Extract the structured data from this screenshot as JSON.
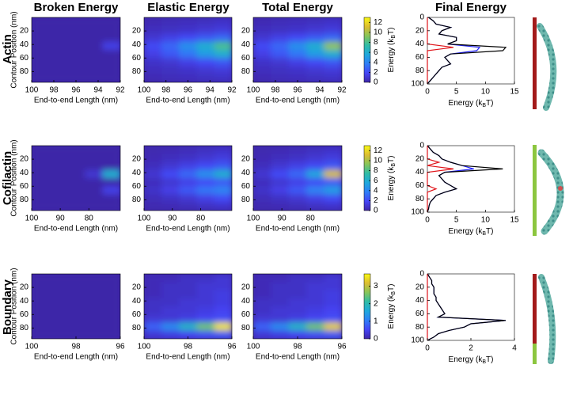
{
  "column_titles": [
    "Broken Energy",
    "Elastic Energy",
    "Total Energy",
    "Final Energy"
  ],
  "row_labels": [
    "Actin",
    "Cofilactin",
    "Boundary"
  ],
  "colormap": [
    "#3e26a8",
    "#4545f5",
    "#2f7ef6",
    "#1fa8dc",
    "#30bca6",
    "#86c55a",
    "#dcbd32",
    "#f9f915"
  ],
  "chart_data": [
    {
      "type": "heatmap",
      "ylabel": "Contour Position (nm)",
      "xlabel": "End-to-end Length (nm)",
      "xlim": [
        100,
        92
      ],
      "xticks": [
        100,
        98,
        96,
        94,
        92
      ],
      "ylim": [
        0,
        96
      ],
      "yticks": [
        20,
        40,
        60,
        80
      ],
      "z": [
        [
          0,
          0,
          0,
          0,
          0
        ],
        [
          0,
          0,
          0,
          0,
          0
        ],
        [
          0,
          0,
          0,
          0,
          0
        ],
        [
          0,
          0,
          0,
          0,
          1.5
        ],
        [
          0,
          0,
          0,
          0,
          0
        ],
        [
          0,
          0,
          0,
          0,
          0
        ],
        [
          0,
          0,
          0,
          0,
          0
        ],
        [
          0,
          0,
          0,
          0,
          0
        ]
      ]
    },
    {
      "type": "heatmap",
      "xlabel": "End-to-end Length (nm)",
      "xlim": [
        100,
        92
      ],
      "xticks": [
        100,
        98,
        96,
        94,
        92
      ],
      "ylim": [
        0,
        96
      ],
      "yticks": [
        20,
        40,
        60,
        80
      ],
      "z": [
        [
          0.3,
          0.4,
          0.5,
          0.6,
          0.8
        ],
        [
          0.5,
          0.6,
          0.8,
          1,
          1.2
        ],
        [
          1,
          1.5,
          2,
          2.5,
          3
        ],
        [
          2,
          3,
          4.5,
          6,
          8
        ],
        [
          1.5,
          2.5,
          3.5,
          5,
          6
        ],
        [
          0.8,
          1,
          1.5,
          2,
          2.5
        ],
        [
          0.5,
          0.6,
          0.8,
          1,
          1.2
        ],
        [
          0.3,
          0.4,
          0.5,
          0.6,
          0.7
        ]
      ]
    },
    {
      "type": "heatmap",
      "xlabel": "End-to-end Length (nm)",
      "xlim": [
        100,
        92
      ],
      "xticks": [
        100,
        98,
        96,
        94,
        92
      ],
      "ylim": [
        0,
        96
      ],
      "yticks": [
        20,
        40,
        60,
        80
      ],
      "z": [
        [
          0.3,
          0.4,
          0.5,
          0.6,
          0.8
        ],
        [
          0.5,
          0.6,
          0.8,
          1,
          1.2
        ],
        [
          1,
          1.5,
          2,
          2.5,
          3
        ],
        [
          2,
          3,
          4.5,
          6,
          9.5
        ],
        [
          1.5,
          2.5,
          3.5,
          5,
          6
        ],
        [
          0.8,
          1,
          1.5,
          2,
          2.5
        ],
        [
          0.5,
          0.6,
          0.8,
          1,
          1.2
        ],
        [
          0.3,
          0.4,
          0.5,
          0.6,
          0.7
        ]
      ]
    },
    {
      "type": "colorbar",
      "label": [
        "Energy (k",
        "B",
        "T)"
      ],
      "lim": [
        0,
        13
      ],
      "ticks": [
        0,
        2,
        4,
        6,
        8,
        10,
        12
      ]
    },
    {
      "type": "line",
      "xlabel": [
        "Energy (k",
        "B",
        "T)"
      ],
      "xlim": [
        0,
        15
      ],
      "xticks": [
        0,
        5,
        10,
        15
      ],
      "ylim": [
        0,
        100
      ],
      "yticks": [
        0,
        20,
        40,
        60,
        80,
        100
      ],
      "positions": [
        0,
        5,
        10,
        15,
        20,
        25,
        30,
        35,
        40,
        45,
        50,
        55,
        60,
        65,
        70,
        75,
        80,
        85,
        90,
        95,
        100
      ],
      "series": [
        {
          "color": "#1f1fff",
          "values": [
            0.2,
            1,
            1.5,
            4,
            2.5,
            2,
            5,
            5,
            3.5,
            9,
            8.5,
            4,
            3,
            3.5,
            4,
            2.5,
            2,
            1.5,
            1,
            0.5,
            0
          ]
        },
        {
          "color": "#000000",
          "values": [
            0.2,
            1,
            1.5,
            4,
            2.5,
            2,
            5,
            5,
            3.5,
            13.5,
            13,
            4,
            3,
            3.5,
            4,
            2.5,
            2,
            1.5,
            1,
            0.5,
            0
          ]
        },
        {
          "color": "#e0141a",
          "values": [
            0,
            0,
            0,
            0,
            0,
            0,
            0,
            0,
            0,
            4.5,
            0,
            0,
            0,
            0,
            0,
            0,
            0,
            0,
            0,
            0,
            0
          ]
        }
      ]
    },
    {
      "type": "heatmap",
      "ylabel": "Contour Position (nm)",
      "xlabel": "End-to-end Length (nm)",
      "xlim": [
        100,
        69
      ],
      "xticks": [
        100,
        90,
        80
      ],
      "ylim": [
        0,
        96
      ],
      "yticks": [
        20,
        40,
        60,
        80
      ],
      "z": [
        [
          0,
          0,
          0,
          0,
          0
        ],
        [
          0,
          0,
          0,
          0,
          0
        ],
        [
          0,
          0,
          0,
          0,
          0
        ],
        [
          0,
          0,
          0,
          1,
          6
        ],
        [
          0,
          0,
          0,
          0,
          0
        ],
        [
          0,
          0,
          0,
          0,
          1.5
        ],
        [
          0,
          0,
          0,
          0,
          0
        ],
        [
          0,
          0,
          0,
          0,
          0
        ]
      ]
    },
    {
      "type": "heatmap",
      "xlabel": "End-to-end Length (nm)",
      "xlim": [
        100,
        69
      ],
      "xticks": [
        100,
        90,
        80
      ],
      "ylim": [
        0,
        96
      ],
      "yticks": [
        20,
        40,
        60,
        80
      ],
      "z": [
        [
          0.2,
          0.3,
          0.4,
          0.6,
          0.8
        ],
        [
          0.3,
          0.5,
          0.7,
          1,
          1.3
        ],
        [
          0.5,
          1,
          1.5,
          2,
          2.5
        ],
        [
          1,
          2,
          3,
          4.5,
          6
        ],
        [
          0.5,
          1,
          1.5,
          2,
          2.5
        ],
        [
          0.8,
          1.5,
          2.5,
          3.5,
          4
        ],
        [
          0.4,
          0.7,
          1,
          1.5,
          2
        ],
        [
          0.2,
          0.3,
          0.4,
          0.6,
          0.8
        ]
      ]
    },
    {
      "type": "heatmap",
      "xlabel": "End-to-end Length (nm)",
      "xlim": [
        100,
        69
      ],
      "xticks": [
        100,
        90,
        80
      ],
      "ylim": [
        0,
        96
      ],
      "yticks": [
        20,
        40,
        60,
        80
      ],
      "z": [
        [
          0.2,
          0.3,
          0.4,
          0.6,
          0.8
        ],
        [
          0.3,
          0.5,
          0.7,
          1,
          1.3
        ],
        [
          0.5,
          1,
          1.5,
          2,
          2.5
        ],
        [
          1,
          2,
          3,
          5.5,
          11
        ],
        [
          0.5,
          1,
          1.5,
          2,
          2.5
        ],
        [
          0.8,
          1.5,
          2.5,
          4,
          5
        ],
        [
          0.4,
          0.7,
          1,
          1.5,
          2
        ],
        [
          0.2,
          0.3,
          0.4,
          0.6,
          0.8
        ]
      ]
    },
    {
      "type": "colorbar",
      "label": [
        "Energy (k",
        "B",
        "T)"
      ],
      "lim": [
        0,
        13
      ],
      "ticks": [
        0,
        2,
        4,
        6,
        8,
        10,
        12
      ]
    },
    {
      "type": "line",
      "xlabel": [
        "Energy (k",
        "B",
        "T)"
      ],
      "xlim": [
        0,
        15
      ],
      "xticks": [
        0,
        5,
        10,
        15
      ],
      "ylim": [
        0,
        100
      ],
      "yticks": [
        0,
        20,
        40,
        60,
        80,
        100
      ],
      "positions": [
        0,
        5,
        10,
        15,
        20,
        25,
        30,
        35,
        40,
        45,
        50,
        55,
        60,
        65,
        70,
        75,
        80,
        85,
        90,
        95,
        100
      ],
      "series": [
        {
          "color": "#1f1fff",
          "values": [
            0,
            0.5,
            1,
            2,
            2.5,
            4,
            6,
            8,
            3,
            2,
            2.5,
            3,
            4,
            5,
            3,
            1.5,
            1,
            0.5,
            0.3,
            0.2,
            0
          ]
        },
        {
          "color": "#000000",
          "values": [
            0,
            0.5,
            1,
            2,
            2.5,
            4,
            6,
            13,
            3,
            2,
            2.5,
            3,
            4,
            5,
            3,
            1.5,
            1,
            0.5,
            0.3,
            0.2,
            0
          ]
        },
        {
          "color": "#e0141a",
          "values": [
            0,
            0,
            0,
            0,
            0,
            2,
            0,
            4.5,
            0,
            0,
            0,
            0,
            0,
            1.5,
            0,
            0,
            0,
            0,
            0,
            0,
            0
          ]
        }
      ]
    },
    {
      "type": "heatmap",
      "ylabel": "Contour Position (nm)",
      "xlabel": "End-to-end Length (nm)",
      "xlim": [
        100,
        96
      ],
      "xticks": [
        100,
        98,
        96
      ],
      "ylim": [
        0,
        96
      ],
      "yticks": [
        20,
        40,
        60,
        80
      ],
      "z": [
        [
          0,
          0,
          0,
          0,
          0
        ],
        [
          0,
          0,
          0,
          0,
          0
        ],
        [
          0,
          0,
          0,
          0,
          0
        ],
        [
          0,
          0,
          0,
          0,
          0
        ],
        [
          0,
          0,
          0,
          0,
          0
        ],
        [
          0,
          0,
          0,
          0,
          0
        ],
        [
          0,
          0,
          0,
          0,
          0
        ],
        [
          0,
          0,
          0,
          0,
          0
        ]
      ]
    },
    {
      "type": "heatmap",
      "xlabel": "End-to-end Length (nm)",
      "xlim": [
        100,
        96
      ],
      "xticks": [
        100,
        98,
        96
      ],
      "ylim": [
        0,
        96
      ],
      "yticks": [
        20,
        40,
        60,
        80
      ],
      "z": [
        [
          0.1,
          0.1,
          0.2,
          0.2,
          0.3
        ],
        [
          0.1,
          0.2,
          0.2,
          0.3,
          0.3
        ],
        [
          0.1,
          0.2,
          0.2,
          0.3,
          0.4
        ],
        [
          0.2,
          0.2,
          0.3,
          0.3,
          0.4
        ],
        [
          0.2,
          0.3,
          0.3,
          0.4,
          0.5
        ],
        [
          0.3,
          0.3,
          0.4,
          0.5,
          0.6
        ],
        [
          0.8,
          1.2,
          1.8,
          2.5,
          3.5
        ],
        [
          0.3,
          0.4,
          0.5,
          0.6,
          0.7
        ]
      ]
    },
    {
      "type": "heatmap",
      "xlabel": "End-to-end Length (nm)",
      "xlim": [
        100,
        96
      ],
      "xticks": [
        100,
        98,
        96
      ],
      "ylim": [
        0,
        96
      ],
      "yticks": [
        20,
        40,
        60,
        80
      ],
      "z": [
        [
          0.1,
          0.1,
          0.2,
          0.2,
          0.3
        ],
        [
          0.1,
          0.2,
          0.2,
          0.3,
          0.3
        ],
        [
          0.1,
          0.2,
          0.2,
          0.3,
          0.4
        ],
        [
          0.2,
          0.2,
          0.3,
          0.3,
          0.4
        ],
        [
          0.2,
          0.3,
          0.3,
          0.4,
          0.5
        ],
        [
          0.3,
          0.3,
          0.4,
          0.5,
          0.6
        ],
        [
          0.8,
          1.2,
          1.8,
          2.5,
          3.3
        ],
        [
          0.3,
          0.4,
          0.5,
          0.6,
          0.7
        ]
      ]
    },
    {
      "type": "colorbar",
      "label": [
        "Energy (k",
        "B",
        "T)"
      ],
      "lim": [
        0,
        3.7
      ],
      "ticks": [
        0,
        1,
        2,
        3
      ]
    },
    {
      "type": "line",
      "xlabel": [
        "Energy (k",
        "B",
        "T)"
      ],
      "xlim": [
        0,
        4
      ],
      "xticks": [
        0,
        2,
        4
      ],
      "ylim": [
        0,
        100
      ],
      "yticks": [
        0,
        20,
        40,
        60,
        80,
        100
      ],
      "positions": [
        0,
        5,
        10,
        15,
        20,
        25,
        30,
        35,
        40,
        45,
        50,
        55,
        60,
        65,
        70,
        75,
        80,
        85,
        90,
        95,
        100
      ],
      "series": [
        {
          "color": "#1f1fff",
          "values": [
            0,
            0.1,
            0.2,
            0.2,
            0.3,
            0.3,
            0.3,
            0.4,
            0.4,
            0.5,
            0.6,
            0.7,
            0.8,
            0.5,
            3.6,
            2,
            1.7,
            1,
            0.5,
            0.3,
            0
          ]
        },
        {
          "color": "#000000",
          "values": [
            0,
            0.1,
            0.2,
            0.2,
            0.3,
            0.3,
            0.3,
            0.4,
            0.4,
            0.5,
            0.6,
            0.7,
            0.8,
            0.5,
            3.6,
            2,
            1.7,
            1,
            0.5,
            0.3,
            0
          ]
        },
        {
          "color": "#e0141a",
          "values": [
            0,
            0,
            0,
            0,
            0,
            0,
            0,
            0,
            0,
            0,
            0,
            0,
            0,
            0,
            0,
            0,
            0,
            0,
            0,
            0,
            0
          ]
        }
      ]
    }
  ]
}
